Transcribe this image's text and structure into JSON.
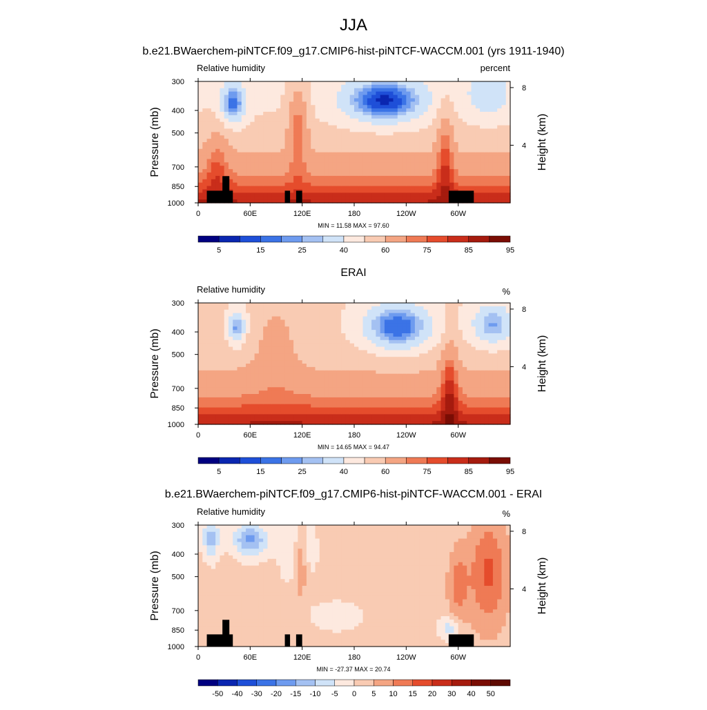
{
  "figure_title": "JJA",
  "chart_data": [
    {
      "type": "heatmap",
      "title": "b.e21.BWaerchem-piNTCF.f09_g17.CMIP6-hist-piNTCF-WACCM.001 (yrs 1911-1940)",
      "left_label": "Relative humidity",
      "right_label": "percent",
      "ylabel": "Pressure (mb)",
      "ylabel_right": "Height (km)",
      "yticks": [
        "300",
        "400",
        "500",
        "700",
        "850",
        "1000"
      ],
      "yticks_right": [
        "8",
        "4"
      ],
      "xticks": [
        "0",
        "60E",
        "120E",
        "180",
        "120W",
        "60W"
      ],
      "minmax_text": "MIN =  11.58  MAX =  97.60",
      "min": 11.58,
      "max": 97.6,
      "colorbar_labels": [
        "5",
        "15",
        "25",
        "40",
        "60",
        "75",
        "85",
        "95"
      ],
      "palette": [
        "#000080",
        "#0a26b0",
        "#1e4fd8",
        "#3b73e6",
        "#6e9bef",
        "#a4c1f2",
        "#d0e3f8",
        "#fde9df",
        "#f9cbb3",
        "#f4a583",
        "#ef7a55",
        "#e54c2c",
        "#c92d1a",
        "#a51b0e",
        "#7a0d04"
      ],
      "terrain": true
    },
    {
      "type": "heatmap",
      "title": "ERAI",
      "left_label": "Relative humidity",
      "right_label": "%",
      "ylabel": "Pressure (mb)",
      "ylabel_right": "Height (km)",
      "yticks": [
        "300",
        "400",
        "500",
        "700",
        "850",
        "1000"
      ],
      "yticks_right": [
        "8",
        "4"
      ],
      "xticks": [
        "0",
        "60E",
        "120E",
        "180",
        "120W",
        "60W"
      ],
      "minmax_text": "MIN =  14.65  MAX =  94.47",
      "min": 14.65,
      "max": 94.47,
      "colorbar_labels": [
        "5",
        "15",
        "25",
        "40",
        "60",
        "75",
        "85",
        "95"
      ],
      "palette": [
        "#000080",
        "#0a26b0",
        "#1e4fd8",
        "#3b73e6",
        "#6e9bef",
        "#a4c1f2",
        "#d0e3f8",
        "#fde9df",
        "#f9cbb3",
        "#f4a583",
        "#ef7a55",
        "#e54c2c",
        "#c92d1a",
        "#a51b0e",
        "#7a0d04"
      ],
      "terrain": false
    },
    {
      "type": "heatmap",
      "title": "b.e21.BWaerchem-piNTCF.f09_g17.CMIP6-hist-piNTCF-WACCM.001 - ERAI",
      "left_label": "Relative humidity",
      "right_label": "%",
      "ylabel": "Pressure (mb)",
      "ylabel_right": "Height (km)",
      "yticks": [
        "300",
        "400",
        "500",
        "700",
        "850",
        "1000"
      ],
      "yticks_right": [
        "8",
        "4"
      ],
      "xticks": [
        "0",
        "60E",
        "120E",
        "180",
        "120W",
        "60W"
      ],
      "minmax_text": "MIN = -27.37  MAX =  20.74",
      "min": -27.37,
      "max": 20.74,
      "colorbar_labels": [
        "-50",
        "-40",
        "-30",
        "-20",
        "-15",
        "-10",
        "-5",
        "0",
        "5",
        "10",
        "15",
        "20",
        "30",
        "40",
        "50"
      ],
      "palette": [
        "#000080",
        "#0a26b0",
        "#1e4fd8",
        "#3b73e6",
        "#6e9bef",
        "#a4c1f2",
        "#d0e3f8",
        "#fde9df",
        "#f9cbb3",
        "#f4a583",
        "#ef7a55",
        "#e54c2c",
        "#c92d1a",
        "#a51b0e",
        "#7a0d04",
        "#5e0a02"
      ],
      "terrain": true
    }
  ]
}
